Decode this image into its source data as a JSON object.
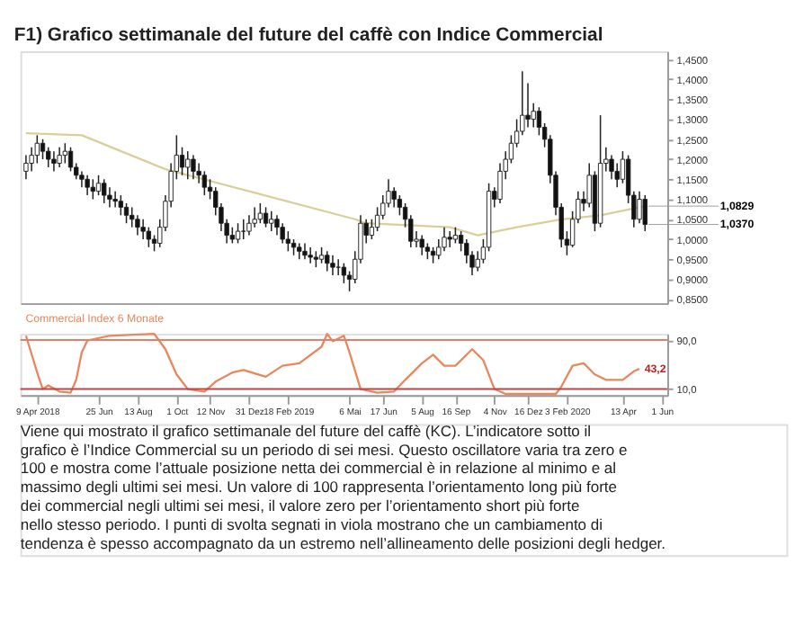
{
  "chart_data": [
    {
      "type": "candlestick",
      "title": "F1) Grafico settimanale del future del caffè con Indice Commercial",
      "x": [
        "2018-03-26",
        "2018-04-02",
        "2018-04-09",
        "2018-04-16",
        "2018-04-23",
        "2018-04-30",
        "2018-05-07",
        "2018-05-14",
        "2018-05-21",
        "2018-05-28",
        "2018-06-04",
        "2018-06-11",
        "2018-06-18",
        "2018-06-25",
        "2018-07-02",
        "2018-07-09",
        "2018-07-16",
        "2018-07-23",
        "2018-07-30",
        "2018-08-06",
        "2018-08-13",
        "2018-08-20",
        "2018-08-27",
        "2018-09-03",
        "2018-09-10",
        "2018-09-17",
        "2018-09-24",
        "2018-10-01",
        "2018-10-08",
        "2018-10-15",
        "2018-10-22",
        "2018-10-29",
        "2018-11-05",
        "2018-11-12",
        "2018-11-19",
        "2018-11-26",
        "2018-12-03",
        "2018-12-10",
        "2018-12-17",
        "2018-12-24",
        "2018-12-31",
        "2019-01-07",
        "2019-01-14",
        "2019-01-21",
        "2019-01-28",
        "2019-02-04",
        "2019-02-11",
        "2019-02-18",
        "2019-02-25",
        "2019-03-04",
        "2019-03-11",
        "2019-03-18",
        "2019-03-25",
        "2019-04-01",
        "2019-04-08",
        "2019-04-15",
        "2019-04-22",
        "2019-04-29",
        "2019-05-06",
        "2019-05-13",
        "2019-05-20",
        "2019-05-27",
        "2019-06-03",
        "2019-06-10",
        "2019-06-17",
        "2019-06-24",
        "2019-07-01",
        "2019-07-08",
        "2019-07-15",
        "2019-07-22",
        "2019-07-29",
        "2019-08-05",
        "2019-08-12",
        "2019-08-19",
        "2019-08-26",
        "2019-09-02",
        "2019-09-09",
        "2019-09-16",
        "2019-09-23",
        "2019-09-30",
        "2019-10-07",
        "2019-10-14",
        "2019-10-21",
        "2019-10-28",
        "2019-11-04",
        "2019-11-11",
        "2019-11-18",
        "2019-11-25",
        "2019-12-02",
        "2019-12-09",
        "2019-12-16",
        "2019-12-23",
        "2019-12-30",
        "2020-01-06",
        "2020-01-13",
        "2020-01-20",
        "2020-01-27",
        "2020-02-03",
        "2020-02-10",
        "2020-02-17",
        "2020-02-24",
        "2020-03-02",
        "2020-03-09",
        "2020-03-16",
        "2020-03-23",
        "2020-03-30",
        "2020-04-06",
        "2020-04-13",
        "2020-04-20",
        "2020-04-27",
        "2020-05-04",
        "2020-05-11"
      ],
      "ohlc": [
        [
          1.17,
          1.21,
          1.15,
          1.19
        ],
        [
          1.19,
          1.23,
          1.17,
          1.21
        ],
        [
          1.21,
          1.26,
          1.19,
          1.24
        ],
        [
          1.24,
          1.25,
          1.2,
          1.22
        ],
        [
          1.22,
          1.23,
          1.18,
          1.2
        ],
        [
          1.2,
          1.22,
          1.17,
          1.19
        ],
        [
          1.19,
          1.23,
          1.18,
          1.21
        ],
        [
          1.21,
          1.24,
          1.19,
          1.22
        ],
        [
          1.22,
          1.23,
          1.17,
          1.18
        ],
        [
          1.18,
          1.19,
          1.15,
          1.16
        ],
        [
          1.16,
          1.17,
          1.13,
          1.15
        ],
        [
          1.15,
          1.16,
          1.11,
          1.13
        ],
        [
          1.13,
          1.15,
          1.1,
          1.12
        ],
        [
          1.12,
          1.16,
          1.11,
          1.14
        ],
        [
          1.14,
          1.15,
          1.09,
          1.11
        ],
        [
          1.11,
          1.13,
          1.08,
          1.1
        ],
        [
          1.1,
          1.12,
          1.08,
          1.095
        ],
        [
          1.095,
          1.11,
          1.06,
          1.08
        ],
        [
          1.08,
          1.09,
          1.04,
          1.06
        ],
        [
          1.06,
          1.08,
          1.03,
          1.05
        ],
        [
          1.05,
          1.06,
          1.01,
          1.03
        ],
        [
          1.03,
          1.05,
          1.0,
          1.02
        ],
        [
          1.02,
          1.03,
          0.98,
          1.0
        ],
        [
          1.0,
          1.01,
          0.97,
          0.99
        ],
        [
          0.99,
          1.05,
          0.98,
          1.03
        ],
        [
          1.03,
          1.11,
          1.02,
          1.095
        ],
        [
          1.095,
          1.19,
          1.08,
          1.17
        ],
        [
          1.17,
          1.26,
          1.15,
          1.21
        ],
        [
          1.21,
          1.23,
          1.16,
          1.18
        ],
        [
          1.18,
          1.22,
          1.15,
          1.2
        ],
        [
          1.2,
          1.21,
          1.15,
          1.17
        ],
        [
          1.17,
          1.19,
          1.14,
          1.16
        ],
        [
          1.16,
          1.17,
          1.11,
          1.13
        ],
        [
          1.13,
          1.15,
          1.1,
          1.12
        ],
        [
          1.12,
          1.13,
          1.06,
          1.08
        ],
        [
          1.08,
          1.09,
          1.02,
          1.04
        ],
        [
          1.04,
          1.05,
          0.99,
          1.01
        ],
        [
          1.01,
          1.03,
          0.99,
          1.0
        ],
        [
          1.0,
          1.04,
          0.99,
          1.02
        ],
        [
          1.02,
          1.05,
          1.0,
          1.02
        ],
        [
          1.02,
          1.06,
          1.01,
          1.04
        ],
        [
          1.04,
          1.08,
          1.03,
          1.05
        ],
        [
          1.05,
          1.09,
          1.04,
          1.065
        ],
        [
          1.065,
          1.08,
          1.03,
          1.04
        ],
        [
          1.04,
          1.07,
          1.02,
          1.05
        ],
        [
          1.05,
          1.06,
          1.01,
          1.03
        ],
        [
          1.03,
          1.04,
          0.99,
          1.0
        ],
        [
          1.0,
          1.02,
          0.97,
          0.99
        ],
        [
          0.99,
          1.0,
          0.96,
          0.98
        ],
        [
          0.98,
          0.99,
          0.95,
          0.97
        ],
        [
          0.97,
          0.99,
          0.95,
          0.96
        ],
        [
          0.96,
          0.98,
          0.94,
          0.955
        ],
        [
          0.955,
          0.97,
          0.93,
          0.95
        ],
        [
          0.95,
          0.98,
          0.94,
          0.96
        ],
        [
          0.96,
          0.97,
          0.92,
          0.94
        ],
        [
          0.94,
          0.96,
          0.91,
          0.93
        ],
        [
          0.93,
          0.95,
          0.91,
          0.93
        ],
        [
          0.93,
          0.94,
          0.89,
          0.91
        ],
        [
          0.91,
          0.92,
          0.87,
          0.9
        ],
        [
          0.9,
          0.97,
          0.89,
          0.95
        ],
        [
          0.95,
          1.06,
          0.94,
          1.04
        ],
        [
          1.04,
          1.05,
          0.99,
          1.01
        ],
        [
          1.01,
          1.05,
          1.0,
          1.03
        ],
        [
          1.03,
          1.08,
          1.02,
          1.06
        ],
        [
          1.06,
          1.11,
          1.05,
          1.09
        ],
        [
          1.09,
          1.15,
          1.08,
          1.12
        ],
        [
          1.12,
          1.13,
          1.08,
          1.1
        ],
        [
          1.1,
          1.11,
          1.06,
          1.08
        ],
        [
          1.08,
          1.09,
          1.03,
          1.05
        ],
        [
          1.05,
          1.06,
          0.98,
          0.995
        ],
        [
          0.995,
          1.02,
          0.98,
          1.0
        ],
        [
          1.0,
          1.01,
          0.96,
          0.98
        ],
        [
          0.98,
          0.99,
          0.95,
          0.97
        ],
        [
          0.97,
          0.98,
          0.94,
          0.96
        ],
        [
          0.96,
          1.0,
          0.95,
          0.98
        ],
        [
          0.98,
          1.03,
          0.97,
          1.005
        ],
        [
          1.005,
          1.02,
          0.98,
          1.0
        ],
        [
          1.0,
          1.03,
          0.99,
          1.01
        ],
        [
          1.01,
          1.02,
          0.97,
          0.99
        ],
        [
          0.99,
          1.0,
          0.94,
          0.96
        ],
        [
          0.96,
          0.97,
          0.91,
          0.93
        ],
        [
          0.93,
          0.97,
          0.92,
          0.95
        ],
        [
          0.95,
          1.0,
          0.94,
          0.98
        ],
        [
          0.98,
          1.14,
          0.97,
          1.12
        ],
        [
          1.12,
          1.13,
          1.08,
          1.1
        ],
        [
          1.1,
          1.19,
          1.09,
          1.17
        ],
        [
          1.17,
          1.22,
          1.15,
          1.2
        ],
        [
          1.2,
          1.26,
          1.19,
          1.24
        ],
        [
          1.24,
          1.3,
          1.23,
          1.27
        ],
        [
          1.27,
          1.42,
          1.26,
          1.31
        ],
        [
          1.31,
          1.39,
          1.28,
          1.3
        ],
        [
          1.3,
          1.34,
          1.28,
          1.32
        ],
        [
          1.32,
          1.33,
          1.26,
          1.28
        ],
        [
          1.28,
          1.29,
          1.23,
          1.25
        ],
        [
          1.25,
          1.26,
          1.14,
          1.16
        ],
        [
          1.16,
          1.17,
          1.06,
          1.08
        ],
        [
          1.08,
          1.09,
          0.98,
          1.0
        ],
        [
          1.0,
          1.02,
          0.96,
          0.985
        ],
        [
          0.985,
          1.07,
          0.98,
          1.05
        ],
        [
          1.05,
          1.12,
          1.04,
          1.1
        ],
        [
          1.1,
          1.12,
          1.07,
          1.09
        ],
        [
          1.09,
          1.19,
          1.08,
          1.16
        ],
        [
          1.16,
          1.17,
          1.02,
          1.04
        ],
        [
          1.04,
          1.31,
          1.03,
          1.19
        ],
        [
          1.19,
          1.23,
          1.17,
          1.2
        ],
        [
          1.2,
          1.21,
          1.15,
          1.17
        ],
        [
          1.17,
          1.19,
          1.13,
          1.15
        ],
        [
          1.15,
          1.22,
          1.14,
          1.2
        ],
        [
          1.2,
          1.21,
          1.09,
          1.11
        ],
        [
          1.11,
          1.12,
          1.03,
          1.05
        ],
        [
          1.05,
          1.12,
          1.04,
          1.1
        ],
        [
          1.1,
          1.11,
          1.02,
          1.037
        ]
      ],
      "series": [
        {
          "type": "line",
          "color": "#d9cf9a",
          "x": [
            "2018-03-26",
            "2018-06-04",
            "2018-09-17",
            "2018-12-31",
            "2019-05-13",
            "2019-05-27",
            "2019-09-09",
            "2019-10-14",
            "2019-12-02",
            "2020-01-27",
            "2020-03-16",
            "2020-05-11"
          ],
          "values": [
            1.265,
            1.26,
            1.175,
            1.12,
            1.05,
            1.04,
            1.03,
            1.01,
            1.03,
            1.05,
            1.06,
            1.083
          ]
        }
      ],
      "xlim": [
        "2018-03-19",
        "2020-06-08"
      ],
      "ylim": [
        0.84,
        1.47
      ],
      "yticks": [
        {
          "value": 0.85,
          "label": "0,8500"
        },
        {
          "value": 0.9,
          "label": "0,9000"
        },
        {
          "value": 0.95,
          "label": "0,9500"
        },
        {
          "value": 1.0,
          "label": "1,0000"
        },
        {
          "value": 1.05,
          "label": "1,0500"
        },
        {
          "value": 1.1,
          "label": "1,1000"
        },
        {
          "value": 1.15,
          "label": "1,1500"
        },
        {
          "value": 1.2,
          "label": "1,2000"
        },
        {
          "value": 1.25,
          "label": "1,2500"
        },
        {
          "value": 1.3,
          "label": "1,3000"
        },
        {
          "value": 1.35,
          "label": "1,3500"
        },
        {
          "value": 1.4,
          "label": "1,4000"
        },
        {
          "value": 1.45,
          "label": "1,4500"
        }
      ],
      "tick_labels": "y",
      "annotations": [
        {
          "text": "1,0829",
          "x": "2020-05-11",
          "y": 1.0829
        },
        {
          "text": "1,0370",
          "x": "2020-05-11",
          "y": 1.037
        }
      ]
    },
    {
      "type": "line",
      "series": [
        {
          "name": "Commercial Index 6 Monate",
          "color": "#e8875c",
          "x": [
            "2018-03-26",
            "2018-04-09",
            "2018-04-16",
            "2018-04-23",
            "2018-05-07",
            "2018-05-21",
            "2018-05-28",
            "2018-06-04",
            "2018-06-11",
            "2018-07-09",
            "2018-09-03",
            "2018-09-17",
            "2018-10-01",
            "2018-10-15",
            "2018-11-05",
            "2018-11-19",
            "2018-12-10",
            "2018-12-24",
            "2019-01-21",
            "2019-02-11",
            "2019-03-04",
            "2019-04-01",
            "2019-04-08",
            "2019-04-15",
            "2019-04-29",
            "2019-05-06",
            "2019-05-20",
            "2019-06-10",
            "2019-07-01",
            "2019-07-15",
            "2019-08-05",
            "2019-08-19",
            "2019-09-02",
            "2019-09-16",
            "2019-10-07",
            "2019-10-21",
            "2019-11-04",
            "2019-11-18",
            "2020-01-20",
            "2020-01-27",
            "2020-02-10",
            "2020-02-24",
            "2020-03-09",
            "2020-03-23",
            "2020-04-13",
            "2020-04-27",
            "2020-05-04"
          ],
          "values": [
            97,
            37,
            10,
            16,
            6,
            4,
            25,
            70,
            89,
            97,
            100,
            75,
            34,
            10,
            6,
            22,
            37,
            41,
            30,
            48,
            52,
            79,
            100,
            88,
            97,
            70,
            10,
            4,
            6,
            25,
            52,
            66,
            48,
            48,
            75,
            57,
            10,
            2,
            2,
            14,
            48,
            52,
            34,
            25,
            25,
            39,
            43.2
          ]
        }
      ],
      "xlim": [
        "2018-03-19",
        "2020-06-08"
      ],
      "ylim": [
        0,
        100
      ],
      "yticks": [
        {
          "value": 10,
          "label": "10,0"
        },
        {
          "value": 90,
          "label": "90,0"
        }
      ],
      "xticks": [
        {
          "value": "2018-04-09",
          "label": "9 Apr 2018"
        },
        {
          "value": "2018-06-25",
          "label": "25 Jun"
        },
        {
          "value": "2018-08-13",
          "label": "13 Aug"
        },
        {
          "value": "2018-10-01",
          "label": "1 Oct"
        },
        {
          "value": "2018-11-12",
          "label": "12 Nov"
        },
        {
          "value": "2018-12-31",
          "label": "31 Dez"
        },
        {
          "value": "2019-02-18",
          "label": "18 Feb 2019"
        },
        {
          "value": "2019-05-06",
          "label": "6 Mai"
        },
        {
          "value": "2019-06-17",
          "label": "17 Jun"
        },
        {
          "value": "2019-08-05",
          "label": "5 Aug"
        },
        {
          "value": "2019-09-16",
          "label": "16 Sep"
        },
        {
          "value": "2019-11-04",
          "label": "4 Nov"
        },
        {
          "value": "2019-12-16",
          "label": "16 Dez"
        },
        {
          "value": "2020-02-03",
          "label": "3 Feb 2020"
        },
        {
          "value": "2020-04-13",
          "label": "13 Apr"
        },
        {
          "value": "2020-06-01",
          "label": "1 Jun"
        }
      ],
      "ref_lines": [
        {
          "axis": "y",
          "value": 90,
          "color": "#e0806a"
        },
        {
          "axis": "y",
          "value": 10,
          "color": "#c84040"
        }
      ],
      "annotations": [
        {
          "text": "43,2",
          "x": "2020-05-04",
          "y": 43.2
        },
        "Viene qui mostrato il grafico settimanale del future del caffè (KC). L’indicatore sotto il grafico è l’Indice Commercial su un periodo di sei mesi. Questo oscillatore varia tra zero e 100 e mostra come l’attuale posizione netta dei commercial è in relazione al minimo e al massimo degli ultimi sei mesi. Un valore di 100 rappresenta l’orientamento long più forte dei commercial negli ultimi sei mesi, il valore zero per l’orientamento short più forte nello stesso periodo. I punti di svolta segnati in viola mostrano che un cambiamento di tendenza è spesso accompagnato da un estremo nell’allineamento delle posizioni degli hedger."
      ]
    }
  ]
}
